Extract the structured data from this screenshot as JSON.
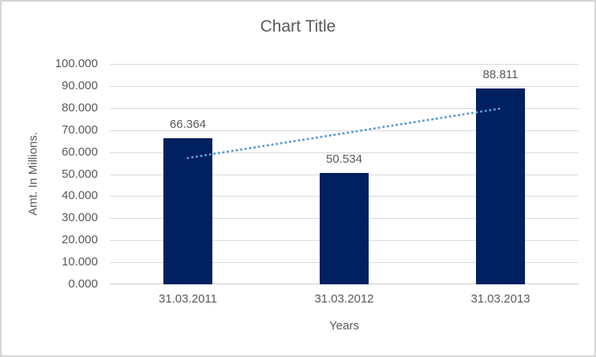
{
  "chart_data": {
    "type": "bar",
    "title": "Chart Title",
    "xlabel": "Years",
    "ylabel": "Amt. In Millions.",
    "categories": [
      "31.03.2011",
      "31.03.2012",
      "31.03.2013"
    ],
    "values": [
      66.364,
      50.534,
      88.811
    ],
    "value_labels": [
      "66.364",
      "50.534",
      "88.811"
    ],
    "ylim": [
      0,
      100
    ],
    "y_ticks": [
      "0.000",
      "10.000",
      "20.000",
      "30.000",
      "40.000",
      "50.000",
      "60.000",
      "70.000",
      "80.000",
      "90.000",
      "100.000"
    ],
    "grid": true,
    "legend": "none",
    "bar_color": "#002060",
    "trendline": {
      "type": "linear",
      "style": "dotted",
      "color": "#5b9bd5"
    },
    "text_color": "#595959",
    "gridline_color": "#d9d9d9",
    "frame_border_color": "#d5d5d5"
  }
}
